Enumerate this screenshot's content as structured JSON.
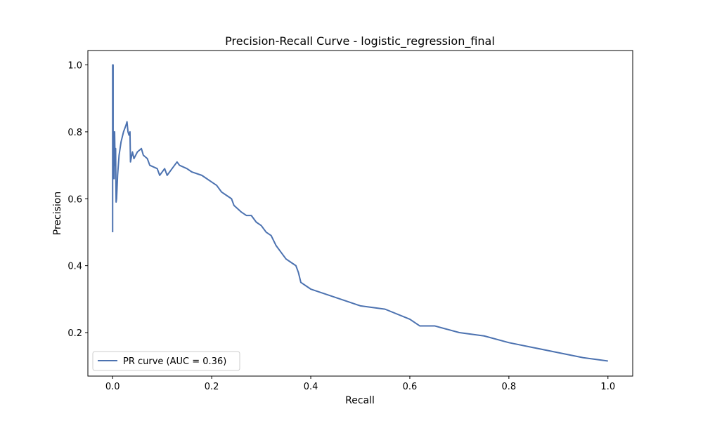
{
  "chart_data": {
    "type": "line",
    "title": "Precision-Recall Curve - logistic_regression_final",
    "xlabel": "Recall",
    "ylabel": "Precision",
    "xlim": [
      -0.05,
      1.05
    ],
    "ylim": [
      0.07,
      1.043
    ],
    "grid": false,
    "legend_position": "lower-left",
    "x_ticks": [
      {
        "value": 0.0,
        "label": "0.0"
      },
      {
        "value": 0.2,
        "label": "0.2"
      },
      {
        "value": 0.4,
        "label": "0.4"
      },
      {
        "value": 0.6,
        "label": "0.6"
      },
      {
        "value": 0.8,
        "label": "0.8"
      },
      {
        "value": 1.0,
        "label": "1.0"
      }
    ],
    "y_ticks": [
      {
        "value": 0.2,
        "label": "0.2"
      },
      {
        "value": 0.4,
        "label": "0.4"
      },
      {
        "value": 0.6,
        "label": "0.6"
      },
      {
        "value": 0.8,
        "label": "0.8"
      },
      {
        "value": 1.0,
        "label": "1.0"
      }
    ],
    "series": [
      {
        "name": "PR curve (AUC = 0.36)",
        "color": "#4c72b0",
        "points": [
          [
            0.0,
            0.5
          ],
          [
            0.0,
            1.0
          ],
          [
            0.001,
            1.0
          ],
          [
            0.001,
            0.66
          ],
          [
            0.002,
            0.8
          ],
          [
            0.003,
            0.66
          ],
          [
            0.004,
            0.8
          ],
          [
            0.005,
            0.7
          ],
          [
            0.006,
            0.75
          ],
          [
            0.007,
            0.59
          ],
          [
            0.008,
            0.6
          ],
          [
            0.01,
            0.67
          ],
          [
            0.013,
            0.73
          ],
          [
            0.017,
            0.77
          ],
          [
            0.022,
            0.8
          ],
          [
            0.027,
            0.82
          ],
          [
            0.029,
            0.83
          ],
          [
            0.031,
            0.8
          ],
          [
            0.033,
            0.79
          ],
          [
            0.035,
            0.8
          ],
          [
            0.036,
            0.71
          ],
          [
            0.04,
            0.74
          ],
          [
            0.043,
            0.72
          ],
          [
            0.05,
            0.74
          ],
          [
            0.058,
            0.75
          ],
          [
            0.062,
            0.73
          ],
          [
            0.07,
            0.72
          ],
          [
            0.075,
            0.7
          ],
          [
            0.09,
            0.69
          ],
          [
            0.095,
            0.67
          ],
          [
            0.105,
            0.69
          ],
          [
            0.11,
            0.67
          ],
          [
            0.12,
            0.69
          ],
          [
            0.13,
            0.71
          ],
          [
            0.135,
            0.7
          ],
          [
            0.15,
            0.69
          ],
          [
            0.16,
            0.68
          ],
          [
            0.18,
            0.67
          ],
          [
            0.19,
            0.66
          ],
          [
            0.2,
            0.65
          ],
          [
            0.21,
            0.64
          ],
          [
            0.22,
            0.62
          ],
          [
            0.23,
            0.61
          ],
          [
            0.24,
            0.6
          ],
          [
            0.245,
            0.58
          ],
          [
            0.26,
            0.56
          ],
          [
            0.27,
            0.55
          ],
          [
            0.28,
            0.55
          ],
          [
            0.29,
            0.53
          ],
          [
            0.3,
            0.52
          ],
          [
            0.31,
            0.5
          ],
          [
            0.32,
            0.49
          ],
          [
            0.33,
            0.46
          ],
          [
            0.34,
            0.44
          ],
          [
            0.35,
            0.42
          ],
          [
            0.36,
            0.41
          ],
          [
            0.37,
            0.4
          ],
          [
            0.375,
            0.38
          ],
          [
            0.38,
            0.35
          ],
          [
            0.39,
            0.34
          ],
          [
            0.4,
            0.33
          ],
          [
            0.42,
            0.32
          ],
          [
            0.44,
            0.31
          ],
          [
            0.46,
            0.3
          ],
          [
            0.48,
            0.29
          ],
          [
            0.5,
            0.28
          ],
          [
            0.55,
            0.27
          ],
          [
            0.6,
            0.24
          ],
          [
            0.62,
            0.22
          ],
          [
            0.65,
            0.22
          ],
          [
            0.7,
            0.2
          ],
          [
            0.75,
            0.19
          ],
          [
            0.8,
            0.17
          ],
          [
            0.85,
            0.155
          ],
          [
            0.9,
            0.14
          ],
          [
            0.95,
            0.125
          ],
          [
            1.0,
            0.115
          ]
        ]
      }
    ]
  }
}
